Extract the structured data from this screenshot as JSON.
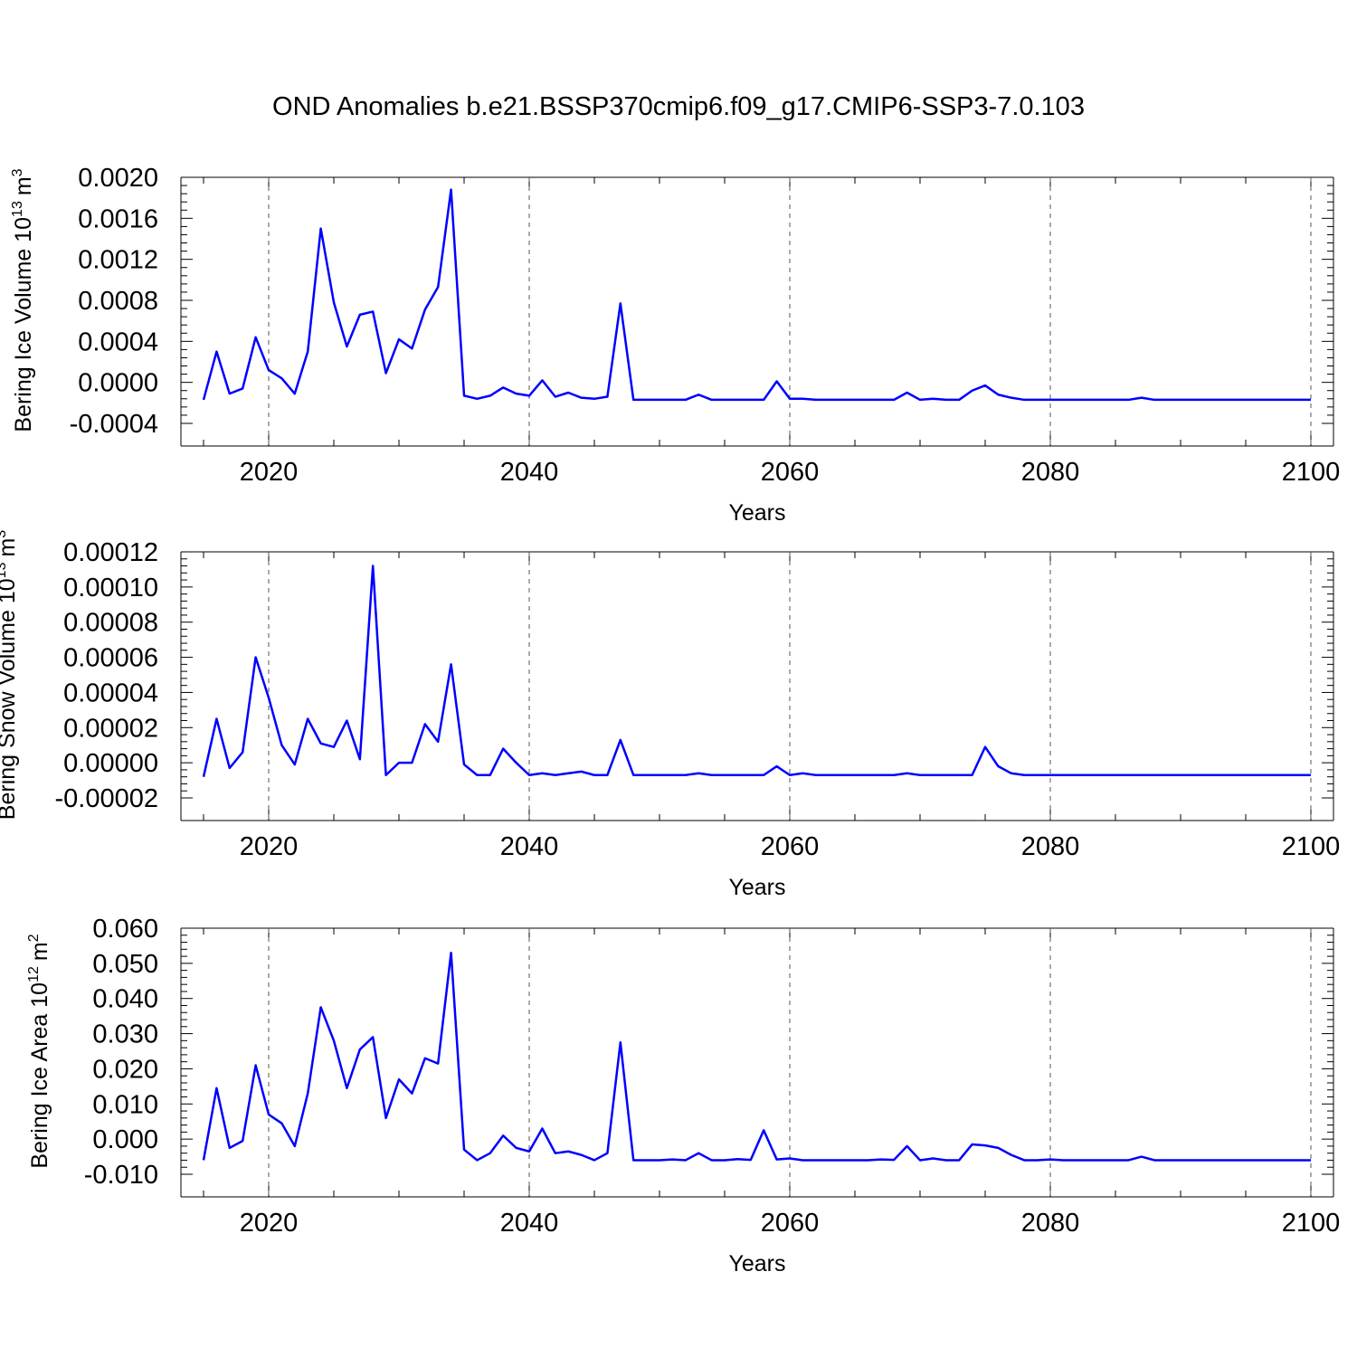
{
  "title": "OND Anomalies b.e21.BSSP370cmip6.f09_g17.CMIP6-SSP3-7.0.103",
  "colors": {
    "line": "#0000ff",
    "axis": "#000000",
    "grid": "#555555"
  },
  "chart_data": [
    {
      "type": "line",
      "xlabel": "Years",
      "ylabel_main": "Bering Ice Volume 10",
      "ylabel_exp": "13",
      "ylabel_unit": "m",
      "ylabel_unit_exp": "3",
      "xlim": [
        2015,
        2100
      ],
      "ylim": [
        -0.0004,
        0.002
      ],
      "x_ticks": [
        "2020",
        "2040",
        "2060",
        "2080",
        "2100"
      ],
      "y_ticks": [
        "-0.0004",
        "0.0000",
        "0.0004",
        "0.0008",
        "0.0012",
        "0.0016",
        "0.0020"
      ],
      "grid": "vertical dashed at major x ticks",
      "x_start": 2015,
      "values": [
        -0.00017,
        0.0003,
        -0.00011,
        -6e-05,
        0.00044,
        0.00012,
        4e-05,
        -0.00011,
        0.0003,
        0.0015,
        0.00078,
        0.00035,
        0.00066,
        0.00069,
        9e-05,
        0.00042,
        0.00033,
        0.00071,
        0.00093,
        0.00188,
        -0.00013,
        -0.00016,
        -0.00013,
        -5e-05,
        -0.00011,
        -0.00013,
        2e-05,
        -0.00014,
        -0.0001,
        -0.00015,
        -0.00016,
        -0.00014,
        0.00077,
        -0.00017,
        -0.00017,
        -0.00017,
        -0.00017,
        -0.00017,
        -0.00012,
        -0.00017,
        -0.00017,
        -0.00017,
        -0.00017,
        -0.00017,
        1e-05,
        -0.00016,
        -0.00016,
        -0.00017,
        -0.00017,
        -0.00017,
        -0.00017,
        -0.00017,
        -0.00017,
        -0.00017,
        -0.0001,
        -0.00017,
        -0.00016,
        -0.00017,
        -0.00017,
        -8e-05,
        -3e-05,
        -0.00012,
        -0.00015,
        -0.00017,
        -0.00017,
        -0.00017,
        -0.00017,
        -0.00017,
        -0.00017,
        -0.00017,
        -0.00017,
        -0.00017,
        -0.00015,
        -0.00017,
        -0.00017,
        -0.00017,
        -0.00017,
        -0.00017,
        -0.00017,
        -0.00017,
        -0.00017,
        -0.00017,
        -0.00017,
        -0.00017,
        -0.00017,
        -0.00017
      ]
    },
    {
      "type": "line",
      "xlabel": "Years",
      "ylabel_main": "Bering Snow Volume 10",
      "ylabel_exp": "13",
      "ylabel_unit": "m",
      "ylabel_unit_exp": "3",
      "xlim": [
        2015,
        2100
      ],
      "ylim": [
        -2e-05,
        0.00012
      ],
      "x_ticks": [
        "2020",
        "2040",
        "2060",
        "2080",
        "2100"
      ],
      "y_ticks": [
        "-0.00002",
        "0.00000",
        "0.00002",
        "0.00004",
        "0.00006",
        "0.00008",
        "0.00010",
        "0.00012"
      ],
      "grid": "vertical dashed at major x ticks",
      "x_start": 2015,
      "values": [
        -8e-06,
        2.5e-05,
        -3e-06,
        6e-06,
        6e-05,
        3.7e-05,
        1e-05,
        -1e-06,
        2.5e-05,
        1.1e-05,
        9e-06,
        2.4e-05,
        2e-06,
        0.000112,
        -7e-06,
        0.0,
        0.0,
        2.2e-05,
        1.2e-05,
        5.6e-05,
        -1e-06,
        -7e-06,
        -7e-06,
        8e-06,
        0.0,
        -7e-06,
        -6e-06,
        -7e-06,
        -6e-06,
        -5e-06,
        -7e-06,
        -7e-06,
        1.3e-05,
        -7e-06,
        -7e-06,
        -7e-06,
        -7e-06,
        -7e-06,
        -6e-06,
        -7e-06,
        -7e-06,
        -7e-06,
        -7e-06,
        -7e-06,
        -2e-06,
        -7e-06,
        -6e-06,
        -7e-06,
        -7e-06,
        -7e-06,
        -7e-06,
        -7e-06,
        -7e-06,
        -7e-06,
        -6e-06,
        -7e-06,
        -7e-06,
        -7e-06,
        -7e-06,
        -7e-06,
        9e-06,
        -2e-06,
        -6e-06,
        -7e-06,
        -7e-06,
        -7e-06,
        -7e-06,
        -7e-06,
        -7e-06,
        -7e-06,
        -7e-06,
        -7e-06,
        -7e-06,
        -7e-06,
        -7e-06,
        -7e-06,
        -7e-06,
        -7e-06,
        -7e-06,
        -7e-06,
        -7e-06,
        -7e-06,
        -7e-06,
        -7e-06,
        -7e-06,
        -7e-06
      ]
    },
    {
      "type": "line",
      "xlabel": "Years",
      "ylabel_main": "Bering Ice Area 10",
      "ylabel_exp": "12",
      "ylabel_unit": "m",
      "ylabel_unit_exp": "2",
      "xlim": [
        2015,
        2100
      ],
      "ylim": [
        -0.01,
        0.06
      ],
      "x_ticks": [
        "2020",
        "2040",
        "2060",
        "2080",
        "2100"
      ],
      "y_ticks": [
        "-0.010",
        "0.000",
        "0.010",
        "0.020",
        "0.030",
        "0.040",
        "0.050",
        "0.060"
      ],
      "grid": "vertical dashed at major x ticks",
      "x_start": 2015,
      "values": [
        -0.006,
        0.0145,
        -0.0025,
        -0.0005,
        0.021,
        0.007,
        0.0045,
        -0.002,
        0.013,
        0.0375,
        0.028,
        0.0145,
        0.0255,
        0.029,
        0.006,
        0.017,
        0.013,
        0.023,
        0.0215,
        0.053,
        -0.003,
        -0.006,
        -0.004,
        0.001,
        -0.0025,
        -0.0035,
        0.003,
        -0.004,
        -0.0035,
        -0.0045,
        -0.006,
        -0.004,
        0.0275,
        -0.006,
        -0.006,
        -0.006,
        -0.0058,
        -0.006,
        -0.004,
        -0.006,
        -0.006,
        -0.0057,
        -0.0059,
        0.0025,
        -0.0058,
        -0.0055,
        -0.006,
        -0.006,
        -0.006,
        -0.006,
        -0.006,
        -0.006,
        -0.0058,
        -0.0059,
        -0.002,
        -0.006,
        -0.0055,
        -0.006,
        -0.006,
        -0.0015,
        -0.0018,
        -0.0025,
        -0.0045,
        -0.006,
        -0.006,
        -0.0058,
        -0.006,
        -0.006,
        -0.006,
        -0.006,
        -0.006,
        -0.006,
        -0.005,
        -0.006,
        -0.006,
        -0.006,
        -0.006,
        -0.006,
        -0.006,
        -0.006,
        -0.006,
        -0.006,
        -0.006,
        -0.006,
        -0.006,
        -0.006
      ]
    }
  ]
}
